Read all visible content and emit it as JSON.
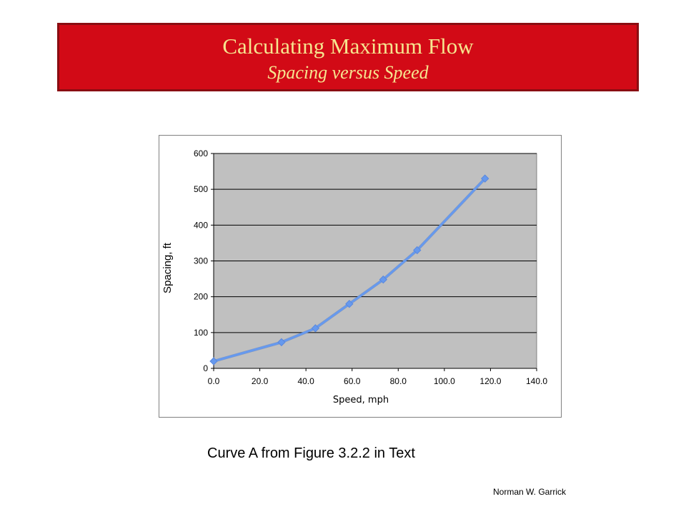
{
  "title": "Calculating Maximum Flow",
  "subtitle": "Spacing versus Speed",
  "caption": "Curve A from Figure 3.2.2 in Text",
  "author": "Norman W. Garrick",
  "colors": {
    "title_bg": "#d20a16",
    "title_text": "#f6e58f",
    "plot_bg": "#c0c0c0",
    "series": "#6699ee"
  },
  "chart_data": {
    "type": "line",
    "xlabel": "Speed, mph",
    "ylabel": "Spacing, ft",
    "xlim": [
      0,
      140
    ],
    "ylim": [
      0,
      600
    ],
    "x_ticks": [
      "0.0",
      "20.0",
      "40.0",
      "60.0",
      "80.0",
      "100.0",
      "120.0",
      "140.0"
    ],
    "y_ticks": [
      "0",
      "100",
      "200",
      "300",
      "400",
      "500",
      "600"
    ],
    "grid": true,
    "legend": "none",
    "series": [
      {
        "x": [
          0,
          29.4,
          44.1,
          58.8,
          73.5,
          88.2,
          117.6
        ],
        "y": [
          20,
          73,
          112,
          180,
          248,
          330,
          530
        ]
      }
    ]
  }
}
